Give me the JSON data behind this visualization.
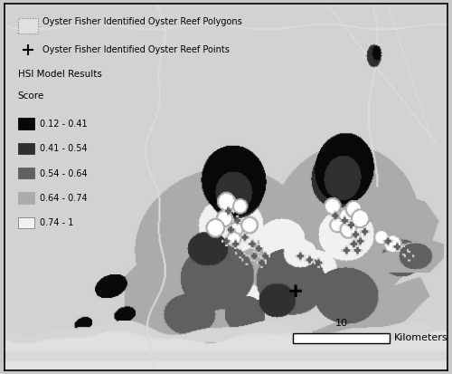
{
  "fig_width": 5.0,
  "fig_height": 4.13,
  "dpi": 100,
  "bg_color": "#c8c8c8",
  "map_bg": "#d2d2d2",
  "border_color": "#000000",
  "c1": "#080808",
  "c2": "#303030",
  "c3": "#606060",
  "c4": "#ababab",
  "c5": "#f2f2f2",
  "road_color": "#e8e8e8",
  "scale_label": "10",
  "scale_unit": "Kilometers",
  "legend_poly_label": "Oyster Fisher Identified Oyster Reef Polygons",
  "legend_point_label": "Oyster Fisher Identified Oyster Reef Points",
  "legend_header": "HSI Model Results",
  "legend_subheader": "Score",
  "score_labels": [
    "0.12 - 0.41",
    "0.41 - 0.54",
    "0.54 - 0.64",
    "0.64 - 0.74",
    "0.74 - 1"
  ],
  "score_colors": [
    "#080808",
    "#303030",
    "#606060",
    "#ababab",
    "#f2f2f2"
  ]
}
